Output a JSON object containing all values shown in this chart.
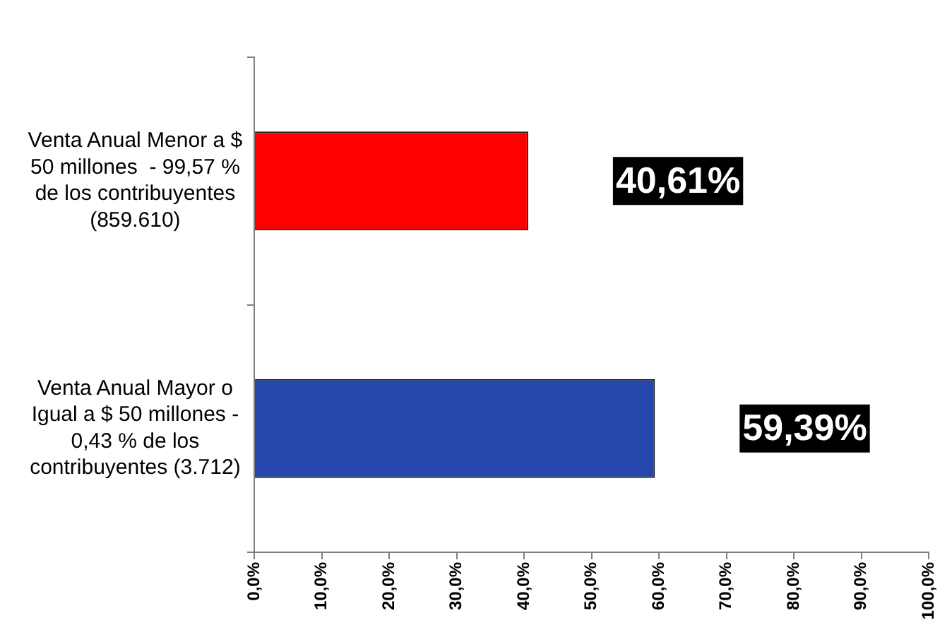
{
  "chart_data": {
    "type": "bar",
    "orientation": "horizontal",
    "categories": [
      "Venta Anual Menor a $ 50 millones  - 99,57 % de los contribuyentes (859.610)",
      "Venta Anual Mayor o Igual a $ 50 millones - 0,43 % de los contribuyentes (3.712)"
    ],
    "values": [
      40.61,
      59.39
    ],
    "colors": [
      "#ff0000",
      "#2446ad"
    ],
    "value_labels": [
      "40,61%",
      "59,39%"
    ],
    "xlim": [
      0,
      100
    ],
    "xticks": [
      {
        "value": 0,
        "label": "0,0%"
      },
      {
        "value": 10,
        "label": "10,0%"
      },
      {
        "value": 20,
        "label": "20,0%"
      },
      {
        "value": 30,
        "label": "30,0%"
      },
      {
        "value": 40,
        "label": "40,0%"
      },
      {
        "value": 50,
        "label": "50,0%"
      },
      {
        "value": 60,
        "label": "60,0%"
      },
      {
        "value": 70,
        "label": "70,0%"
      },
      {
        "value": 80,
        "label": "80,0%"
      },
      {
        "value": 90,
        "label": "90,0%"
      },
      {
        "value": 100,
        "label": "100,0%"
      }
    ],
    "grid": false,
    "legend": false
  }
}
